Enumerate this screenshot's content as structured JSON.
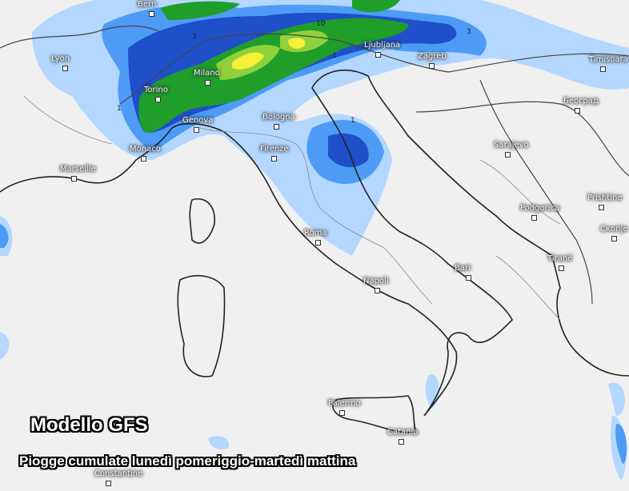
{
  "map": {
    "title": "Modello GFS",
    "subtitle": "Piogge cumulate lunedì pomeriggio-martedì mattina",
    "colors": {
      "background": "#f0f0f0",
      "rain_light": "#b3d7ff",
      "rain_mid": "#4d9bf5",
      "rain_heavy": "#1f4fc9",
      "rain_green": "#1f9e2a",
      "rain_lightgreen": "#8fd13a",
      "rain_yellow": "#f5f03a",
      "border": "#222222"
    },
    "contour_labels": [
      "1",
      "1",
      "1",
      "3",
      "3",
      "10"
    ],
    "cities": [
      {
        "name": "Bern"
      },
      {
        "name": "Lyon"
      },
      {
        "name": "Milano"
      },
      {
        "name": "Torino"
      },
      {
        "name": "Genova"
      },
      {
        "name": "Monaco"
      },
      {
        "name": "Marseille"
      },
      {
        "name": "Bologna"
      },
      {
        "name": "Firenze"
      },
      {
        "name": "Ljubljana"
      },
      {
        "name": "Zagreb"
      },
      {
        "name": "Timisoara"
      },
      {
        "name": "Београд"
      },
      {
        "name": "Sarajevo"
      },
      {
        "name": "Podgorica"
      },
      {
        "name": "Prishtine"
      },
      {
        "name": "Скопје"
      },
      {
        "name": "Tiranë"
      },
      {
        "name": "Roma"
      },
      {
        "name": "Napoli"
      },
      {
        "name": "Bari"
      },
      {
        "name": "Palermo"
      },
      {
        "name": "Catania"
      },
      {
        "name": "Constantine"
      }
    ]
  }
}
